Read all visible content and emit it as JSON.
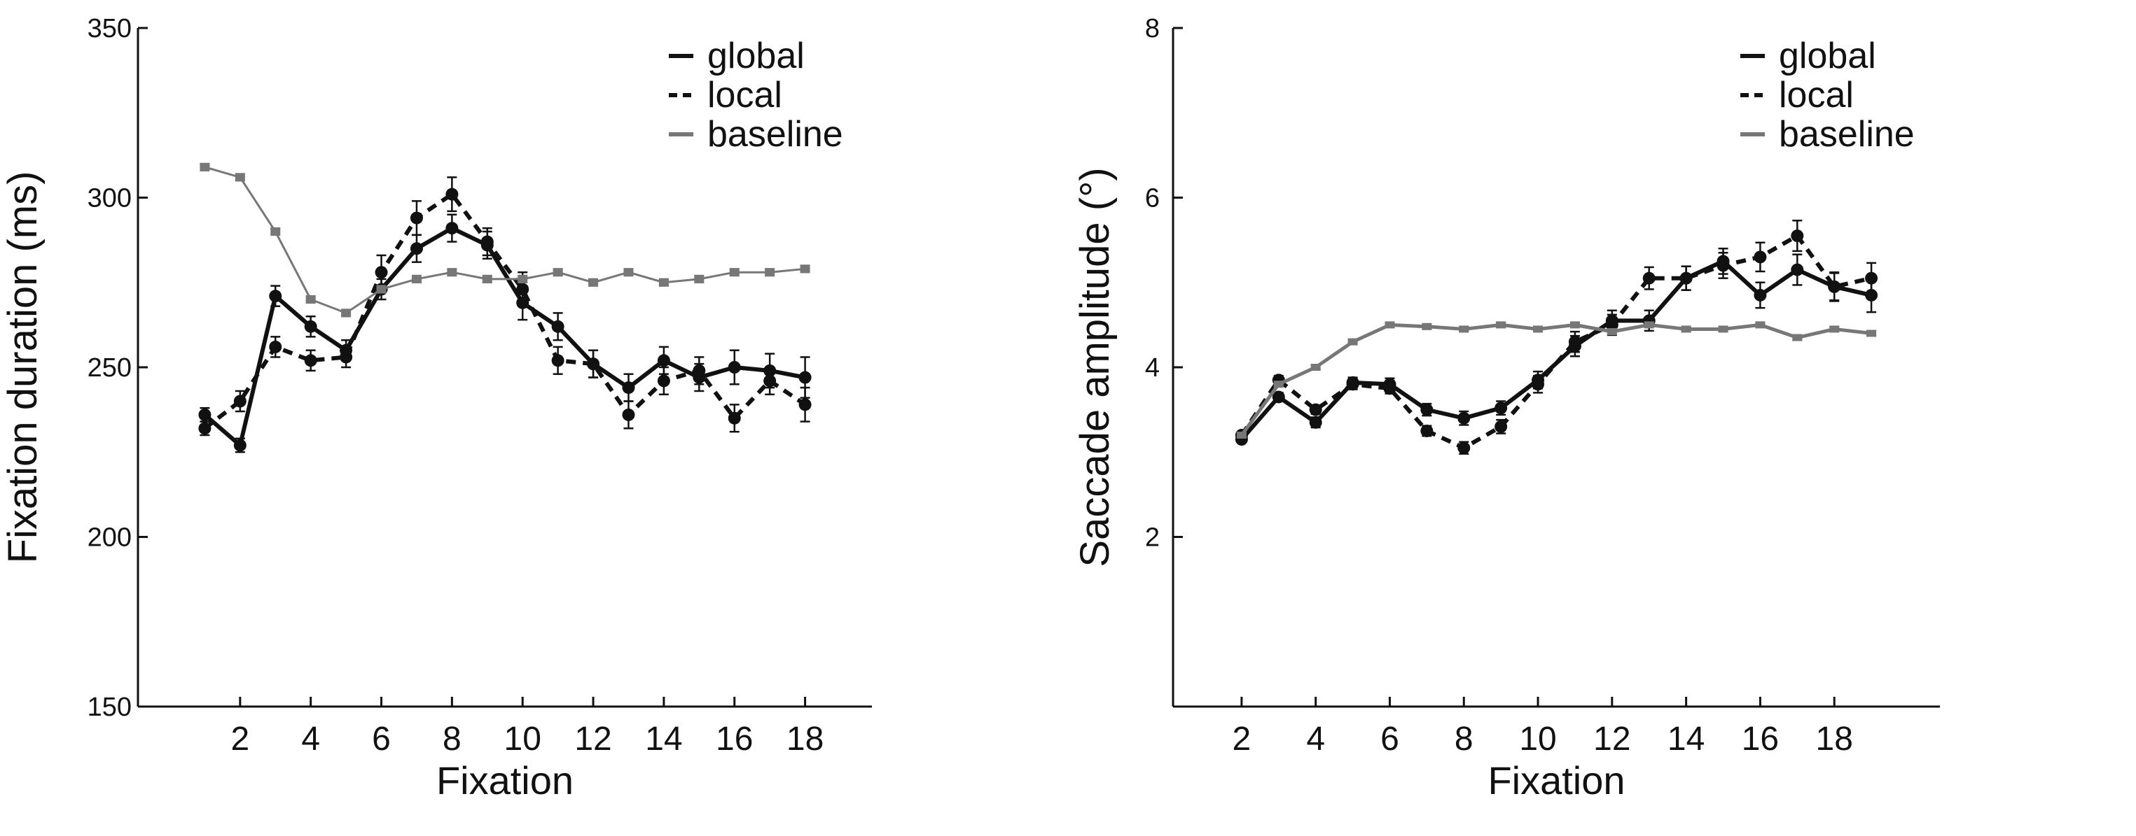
{
  "chart_data": [
    {
      "type": "line",
      "title": "",
      "xlabel": "Fixation",
      "ylabel": "Fixation duration (ms)",
      "xlim": [
        0,
        19
      ],
      "ylim": [
        150,
        350
      ],
      "xticks": [
        2,
        4,
        6,
        8,
        10,
        12,
        14,
        16,
        18
      ],
      "yticks": [
        150,
        200,
        250,
        300,
        350
      ],
      "grid": false,
      "legend_position": "top-right",
      "series": [
        {
          "name": "global",
          "color": "#111111",
          "style": "solid",
          "x": [
            1,
            2,
            3,
            4,
            5,
            6,
            7,
            8,
            9,
            10,
            11,
            12,
            13,
            14,
            15,
            16,
            17,
            18
          ],
          "values": [
            236,
            227,
            271,
            262,
            255,
            273,
            285,
            291,
            286,
            269,
            262,
            251,
            244,
            252,
            247,
            250,
            249,
            247
          ],
          "errors": [
            2,
            2,
            3,
            3,
            3,
            3,
            4,
            4,
            4,
            5,
            4,
            4,
            4,
            4,
            4,
            5,
            5,
            6
          ]
        },
        {
          "name": "local",
          "color": "#111111",
          "style": "dashed",
          "x": [
            1,
            2,
            3,
            4,
            5,
            6,
            7,
            8,
            9,
            10,
            11,
            12,
            13,
            14,
            15,
            16,
            17,
            18
          ],
          "values": [
            232,
            240,
            256,
            252,
            253,
            278,
            294,
            301,
            287,
            273,
            252,
            251,
            236,
            246,
            249,
            235,
            246,
            239
          ],
          "errors": [
            2,
            3,
            3,
            3,
            3,
            5,
            5,
            5,
            4,
            5,
            4,
            4,
            4,
            4,
            4,
            4,
            4,
            5
          ]
        },
        {
          "name": "baseline",
          "color": "#777777",
          "style": "solid",
          "x": [
            1,
            2,
            3,
            4,
            5,
            6,
            7,
            8,
            9,
            10,
            11,
            12,
            13,
            14,
            15,
            16,
            17,
            18
          ],
          "values": [
            309,
            306,
            290,
            270,
            266,
            273,
            276,
            278,
            276,
            276,
            278,
            275,
            278,
            275,
            276,
            278,
            278,
            279
          ],
          "errors": [
            1,
            1,
            1,
            1,
            1,
            1,
            1,
            1,
            1,
            1,
            1,
            1,
            1,
            1,
            1,
            1,
            1,
            1
          ]
        }
      ]
    },
    {
      "type": "line",
      "title": "",
      "xlabel": "Fixation",
      "ylabel": "Saccade amplitude (°)",
      "xlim": [
        1,
        20
      ],
      "ylim": [
        0,
        8
      ],
      "xticks": [
        2,
        4,
        6,
        8,
        10,
        12,
        14,
        16,
        18
      ],
      "yticks": [
        2,
        4,
        6,
        8
      ],
      "grid": false,
      "legend_position": "top-right",
      "series": [
        {
          "name": "global",
          "color": "#111111",
          "style": "solid",
          "x": [
            2,
            3,
            4,
            5,
            6,
            7,
            8,
            9,
            10,
            11,
            12,
            13,
            14,
            15,
            16,
            17,
            18,
            19
          ],
          "values": [
            3.15,
            3.65,
            3.35,
            3.82,
            3.8,
            3.5,
            3.4,
            3.52,
            3.85,
            4.25,
            4.55,
            4.55,
            5.05,
            5.25,
            4.85,
            5.15,
            4.95,
            4.85
          ],
          "errors": [
            0.03,
            0.05,
            0.06,
            0.06,
            0.07,
            0.07,
            0.08,
            0.08,
            0.1,
            0.12,
            0.12,
            0.12,
            0.14,
            0.15,
            0.15,
            0.18,
            0.17,
            0.2
          ]
        },
        {
          "name": "local",
          "color": "#111111",
          "style": "dashed",
          "x": [
            2,
            3,
            4,
            5,
            6,
            7,
            8,
            9,
            10,
            11,
            12,
            13,
            14,
            15,
            16,
            17,
            18,
            19
          ],
          "values": [
            3.2,
            3.85,
            3.5,
            3.8,
            3.75,
            3.25,
            3.05,
            3.3,
            3.8,
            4.3,
            4.5,
            5.05,
            5.05,
            5.2,
            5.3,
            5.55,
            4.95,
            5.05
          ],
          "errors": [
            0.03,
            0.05,
            0.05,
            0.06,
            0.06,
            0.06,
            0.07,
            0.08,
            0.1,
            0.12,
            0.12,
            0.13,
            0.14,
            0.15,
            0.17,
            0.18,
            0.16,
            0.18
          ]
        },
        {
          "name": "baseline",
          "color": "#777777",
          "style": "solid",
          "x": [
            2,
            3,
            4,
            5,
            6,
            7,
            8,
            9,
            10,
            11,
            12,
            13,
            14,
            15,
            16,
            17,
            18,
            19
          ],
          "values": [
            3.2,
            3.8,
            4.0,
            4.3,
            4.5,
            4.48,
            4.45,
            4.5,
            4.45,
            4.5,
            4.42,
            4.5,
            4.45,
            4.45,
            4.5,
            4.35,
            4.45,
            4.4
          ],
          "errors": [
            0.03,
            0.03,
            0.03,
            0.03,
            0.03,
            0.03,
            0.03,
            0.03,
            0.03,
            0.03,
            0.03,
            0.03,
            0.03,
            0.03,
            0.03,
            0.03,
            0.03,
            0.03
          ]
        }
      ]
    }
  ]
}
